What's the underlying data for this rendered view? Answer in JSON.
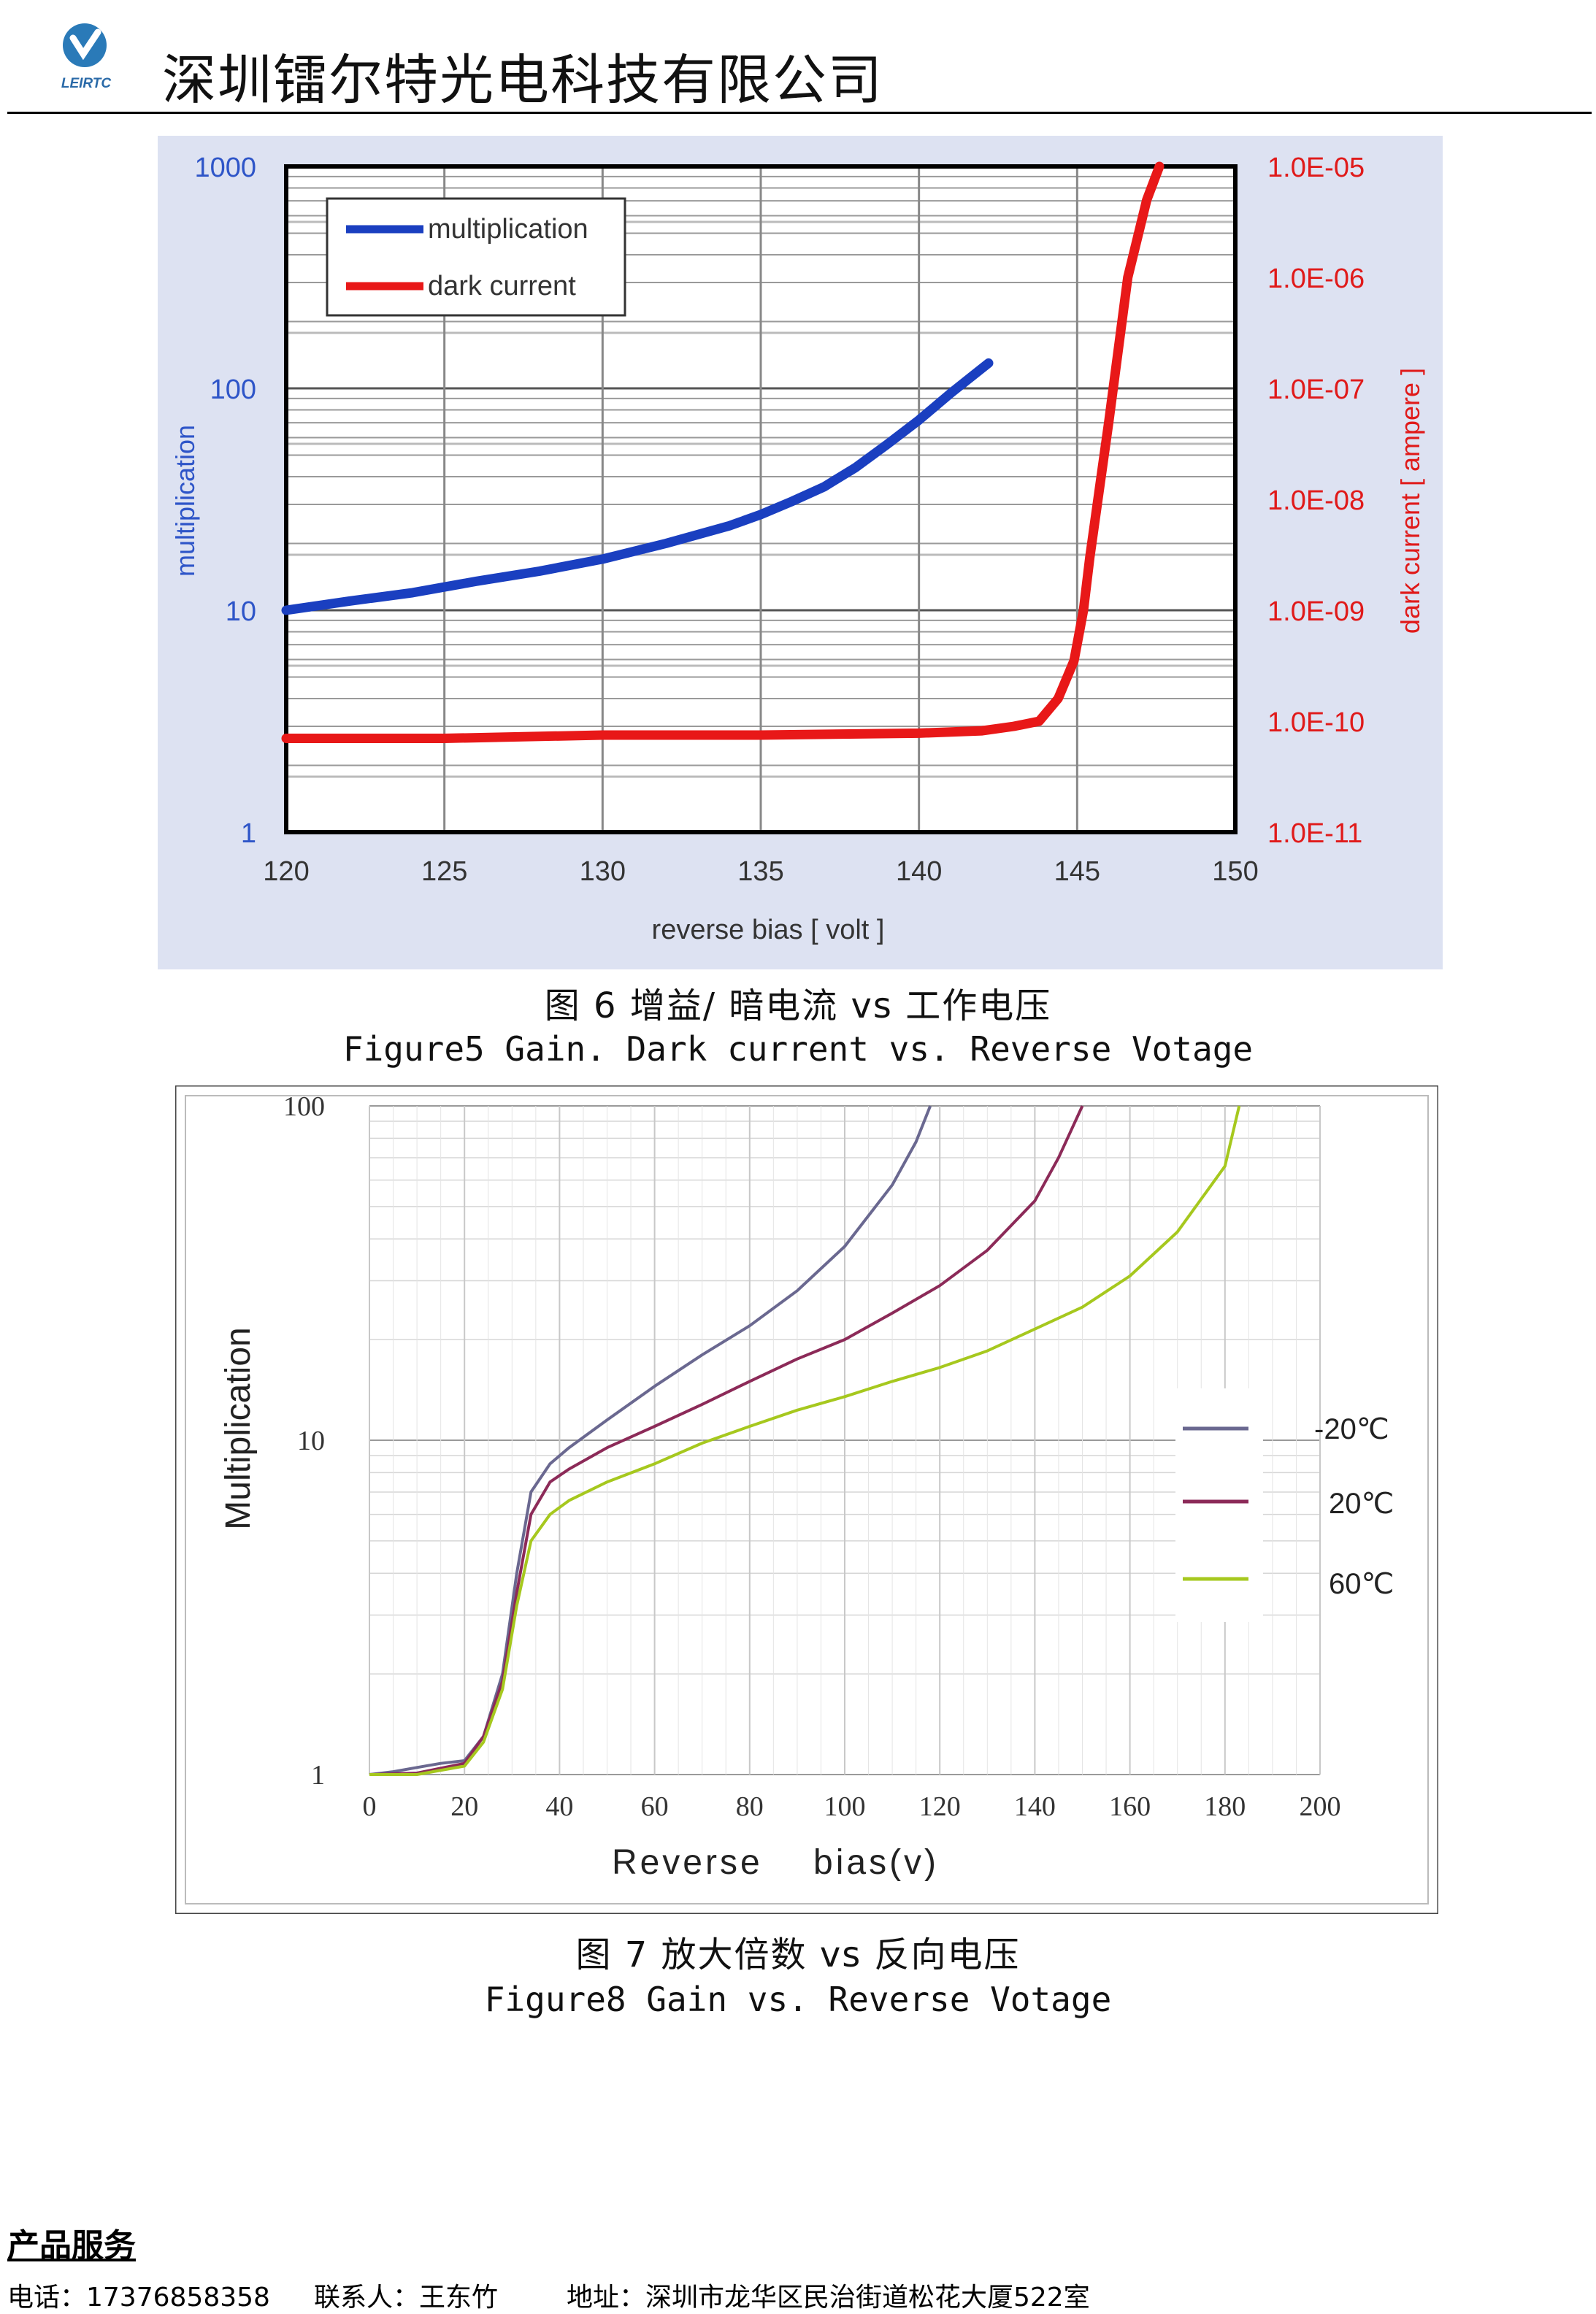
{
  "header": {
    "logo_text": "LEIRTC",
    "company_name": "深圳镭尔特光电科技有限公司"
  },
  "figure1": {
    "caption_cn": "图 6 增益/ 暗电流 vs 工作电压",
    "caption_en": "Figure5  Gain. Dark current vs. Reverse Votage",
    "legend": [
      "multiplication",
      "dark current"
    ],
    "colors": {
      "multiplication": "#1a3fc0",
      "dark_current": "#e81818",
      "bg": "#dde2f2",
      "left_axis": "#2e55c8",
      "right_axis": "#e01a1a"
    }
  },
  "figure2": {
    "caption_cn": "图 7 放大倍数 vs 反向电压",
    "caption_en": "Figure8 Gain vs. Reverse Votage",
    "colors": {
      "-20": "#6a6890",
      "20": "#8c2a58",
      "60": "#a6c81e"
    }
  },
  "chart_data": [
    {
      "type": "line",
      "xlabel": "reverse bias [ volt ]",
      "ylabel": "multiplication",
      "y2label": "dark current [ ampere ]",
      "xlim": [
        120,
        150
      ],
      "ylim": [
        1,
        1000
      ],
      "y2lim": [
        1e-11,
        1e-05
      ],
      "yscale": "log",
      "y2scale": "log",
      "x_ticks": [
        "120",
        "125",
        "130",
        "135",
        "140",
        "145",
        "150"
      ],
      "y_ticks": [
        "1",
        "10",
        "100",
        "1000"
      ],
      "y2_ticks": [
        "1.0E-11",
        "1.0E-10",
        "1.0E-09",
        "1.0E-08",
        "1.0E-07",
        "1.0E-06",
        "1.0E-05"
      ],
      "legend_position": "top-left",
      "grid": true,
      "series": [
        {
          "name": "multiplication",
          "axis": "left",
          "x": [
            120,
            122,
            124,
            126,
            128,
            130,
            132,
            134,
            135,
            136,
            137,
            138,
            139,
            140,
            141,
            142.2
          ],
          "y": [
            10,
            11,
            12,
            13.5,
            15,
            17,
            20,
            24,
            27,
            31,
            36,
            44,
            56,
            72,
            95,
            130
          ]
        },
        {
          "name": "dark current",
          "axis": "right",
          "x": [
            120,
            125,
            130,
            135,
            140,
            142,
            143,
            143.8,
            144.4,
            144.9,
            145.2,
            145.4,
            146,
            146.6,
            147.2,
            147.6
          ],
          "y": [
            7e-11,
            7e-11,
            7.5e-11,
            7.5e-11,
            7.8e-11,
            8.2e-11,
            9e-11,
            1e-10,
            1.6e-10,
            3.5e-10,
            1e-09,
            3e-09,
            5e-08,
            1e-06,
            5e-06,
            1e-05
          ]
        }
      ]
    },
    {
      "type": "line",
      "xlabel": "Reverse    bias(v)",
      "ylabel": "Multiplication",
      "xlim": [
        0,
        200
      ],
      "ylim": [
        1,
        100
      ],
      "yscale": "log",
      "x_ticks": [
        "0",
        "20",
        "40",
        "60",
        "80",
        "100",
        "120",
        "140",
        "160",
        "180",
        "200"
      ],
      "y_ticks": [
        "1",
        "10",
        "100"
      ],
      "legend_position": "right",
      "grid": true,
      "series": [
        {
          "name": "-20℃",
          "x": [
            0,
            5,
            10,
            15,
            20,
            24,
            28,
            31,
            34,
            38,
            42,
            50,
            60,
            70,
            80,
            90,
            100,
            110,
            115,
            118
          ],
          "y": [
            1,
            1.02,
            1.05,
            1.08,
            1.1,
            1.3,
            2,
            4,
            7,
            8.5,
            9.5,
            11.5,
            14.5,
            18,
            22,
            28,
            38,
            58,
            78,
            100
          ]
        },
        {
          "name": "20℃",
          "x": [
            0,
            10,
            20,
            24,
            28,
            31,
            34,
            38,
            42,
            50,
            60,
            70,
            80,
            90,
            100,
            110,
            120,
            130,
            140,
            145,
            150
          ],
          "y": [
            1,
            1.01,
            1.08,
            1.3,
            1.9,
            3.5,
            6,
            7.5,
            8.2,
            9.5,
            11,
            12.8,
            15,
            17.5,
            20,
            24,
            29,
            37,
            52,
            70,
            100
          ]
        },
        {
          "name": "60℃",
          "x": [
            0,
            10,
            20,
            24,
            28,
            31,
            34,
            38,
            42,
            50,
            60,
            70,
            80,
            90,
            100,
            110,
            120,
            130,
            140,
            150,
            160,
            170,
            180,
            183
          ],
          "y": [
            1,
            1.0,
            1.06,
            1.25,
            1.8,
            3.2,
            5,
            6,
            6.6,
            7.5,
            8.5,
            9.8,
            11,
            12.3,
            13.5,
            15,
            16.5,
            18.5,
            21.5,
            25,
            31,
            42,
            66,
            100
          ]
        }
      ]
    }
  ],
  "footer": {
    "title": "产品服务 ",
    "phone": "电话：17376858358",
    "contact": "联系人：王东竹",
    "address": "地址：深圳市龙华区民治街道松花大厦522室"
  }
}
